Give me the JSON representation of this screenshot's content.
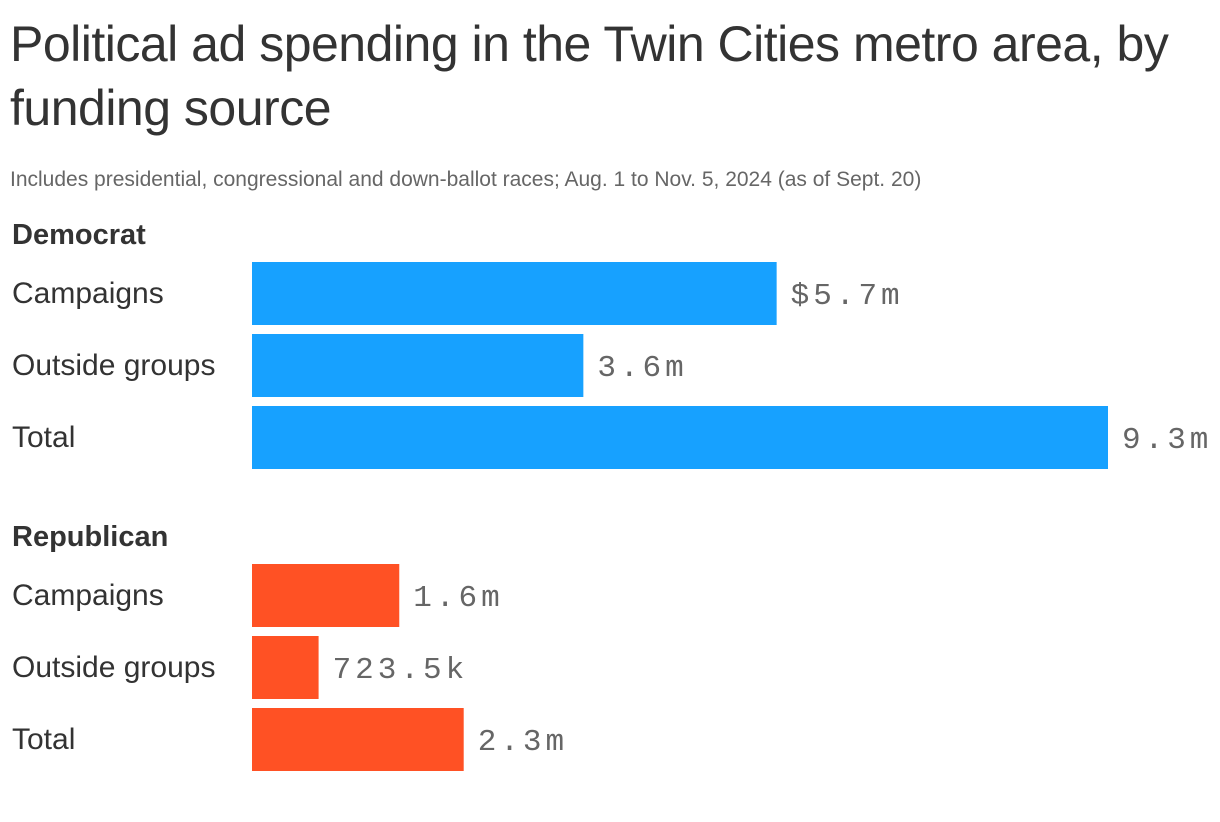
{
  "title": "Political ad spending in the Twin Cities metro area, by funding source",
  "subtitle": "Includes presidential, congressional and down-ballot races; Aug. 1 to Nov. 5, 2024 (as of Sept. 20)",
  "colors": {
    "Democrat": "#17a1ff",
    "Republican": "#ff5124"
  },
  "chart_data": {
    "type": "bar",
    "orientation": "horizontal",
    "title": "Political ad spending in the Twin Cities metro area, by funding source",
    "subtitle": "Includes presidential, congressional and down-ballot races; Aug. 1 to Nov. 5, 2024 (as of Sept. 20)",
    "xlabel": "",
    "ylabel": "",
    "grid": false,
    "unit": "USD",
    "groups": [
      {
        "name": "Democrat",
        "categories": [
          "Campaigns",
          "Outside groups",
          "Total"
        ],
        "values": [
          5700000,
          3600000,
          9300000
        ],
        "labels": [
          "$5.7m",
          "3.6m",
          "9.3m"
        ]
      },
      {
        "name": "Republican",
        "categories": [
          "Campaigns",
          "Outside groups",
          "Total"
        ],
        "values": [
          1600000,
          723500,
          2300000
        ],
        "labels": [
          "1.6m",
          "723.5k",
          "2.3m"
        ]
      }
    ]
  }
}
